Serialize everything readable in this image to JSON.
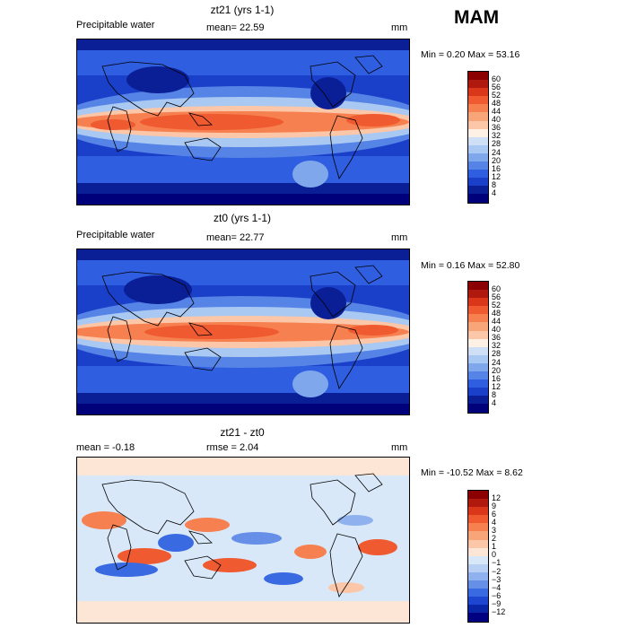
{
  "season": "MAM",
  "panels": [
    {
      "title": "zt21 (yrs 1-1)",
      "left_label": "Precipitable water",
      "center_label": "mean=   22.59",
      "units": "mm",
      "min_max": "Min =    0.20  Max =  53.16",
      "legend_levels": [
        "60",
        "56",
        "52",
        "48",
        "44",
        "40",
        "36",
        "32",
        "28",
        "24",
        "20",
        "16",
        "12",
        "8",
        "4"
      ],
      "legend_colors": [
        "#8b0000",
        "#b01a0e",
        "#d9361a",
        "#ef5a30",
        "#f6804f",
        "#f9a57a",
        "#fbc7a8",
        "#fdf0e4",
        "#cfe0f6",
        "#a9c8f2",
        "#7fa8ec",
        "#5683e6",
        "#2f5ee0",
        "#1a3fc8",
        "#0a1f96",
        "#00007a"
      ]
    },
    {
      "title": "zt0 (yrs 1-1)",
      "left_label": "Precipitable water",
      "center_label": "mean=   22.77",
      "units": "mm",
      "min_max": "Min =    0.16  Max =  52.80",
      "legend_levels": [
        "60",
        "56",
        "52",
        "48",
        "44",
        "40",
        "36",
        "32",
        "28",
        "24",
        "20",
        "16",
        "12",
        "8",
        "4"
      ],
      "legend_colors": [
        "#8b0000",
        "#b01a0e",
        "#d9361a",
        "#ef5a30",
        "#f6804f",
        "#f9a57a",
        "#fbc7a8",
        "#fdf0e4",
        "#cfe0f6",
        "#a9c8f2",
        "#7fa8ec",
        "#5683e6",
        "#2f5ee0",
        "#1a3fc8",
        "#0a1f96",
        "#00007a"
      ]
    },
    {
      "title": "zt21 - zt0",
      "left_label": "mean =   -0.18",
      "center_label": "rmse =    2.04",
      "units": "mm",
      "min_max": "Min = -10.52  Max =    8.62",
      "legend_levels": [
        "12",
        "9",
        "6",
        "4",
        "3",
        "2",
        "1",
        "0",
        "−1",
        "−2",
        "−3",
        "−4",
        "−6",
        "−9",
        "−12"
      ],
      "legend_colors": [
        "#8b0000",
        "#b01a0e",
        "#d9361a",
        "#ef5a30",
        "#f6804f",
        "#f9a57a",
        "#fbc7a8",
        "#fde6d6",
        "#d9e8f8",
        "#b7d0f3",
        "#8fb2ee",
        "#6690e8",
        "#3a6ae2",
        "#1f46d0",
        "#0a26a8",
        "#000080"
      ]
    }
  ]
}
